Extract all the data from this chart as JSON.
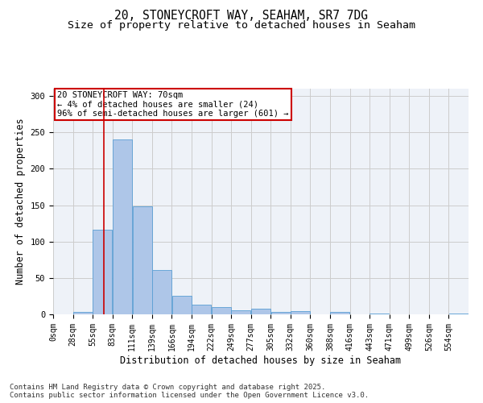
{
  "title_line1": "20, STONEYCROFT WAY, SEAHAM, SR7 7DG",
  "title_line2": "Size of property relative to detached houses in Seaham",
  "xlabel": "Distribution of detached houses by size in Seaham",
  "ylabel": "Number of detached properties",
  "bar_color": "#aec6e8",
  "bar_edge_color": "#5a9fd4",
  "grid_color": "#cccccc",
  "bg_color": "#eef2f8",
  "annotation_text": "20 STONEYCROFT WAY: 70sqm\n← 4% of detached houses are smaller (24)\n96% of semi-detached houses are larger (601) →",
  "annotation_box_color": "#ffffff",
  "annotation_border_color": "#cc0000",
  "red_line_x": 70,
  "bin_edges": [
    0,
    27.5,
    55,
    82.5,
    110,
    137.5,
    165,
    192.5,
    220,
    247.5,
    275,
    302.5,
    330,
    357.5,
    385,
    412.5,
    440,
    467.5,
    495,
    522.5,
    550,
    577.5
  ],
  "bin_labels": [
    "0sqm",
    "28sqm",
    "55sqm",
    "83sqm",
    "111sqm",
    "139sqm",
    "166sqm",
    "194sqm",
    "222sqm",
    "249sqm",
    "277sqm",
    "305sqm",
    "332sqm",
    "360sqm",
    "388sqm",
    "416sqm",
    "443sqm",
    "471sqm",
    "499sqm",
    "526sqm",
    "554sqm"
  ],
  "bar_heights": [
    0,
    3,
    116,
    240,
    148,
    61,
    25,
    13,
    10,
    5,
    8,
    3,
    4,
    0,
    3,
    0,
    1,
    0,
    0,
    0,
    1
  ],
  "ylim": [
    0,
    310
  ],
  "yticks": [
    0,
    50,
    100,
    150,
    200,
    250,
    300
  ],
  "footer_line1": "Contains HM Land Registry data © Crown copyright and database right 2025.",
  "footer_line2": "Contains public sector information licensed under the Open Government Licence v3.0.",
  "title_fontsize": 10.5,
  "subtitle_fontsize": 9.5,
  "tick_fontsize": 7,
  "ylabel_fontsize": 8.5,
  "xlabel_fontsize": 8.5,
  "footer_fontsize": 6.5,
  "annotation_fontsize": 7.5
}
